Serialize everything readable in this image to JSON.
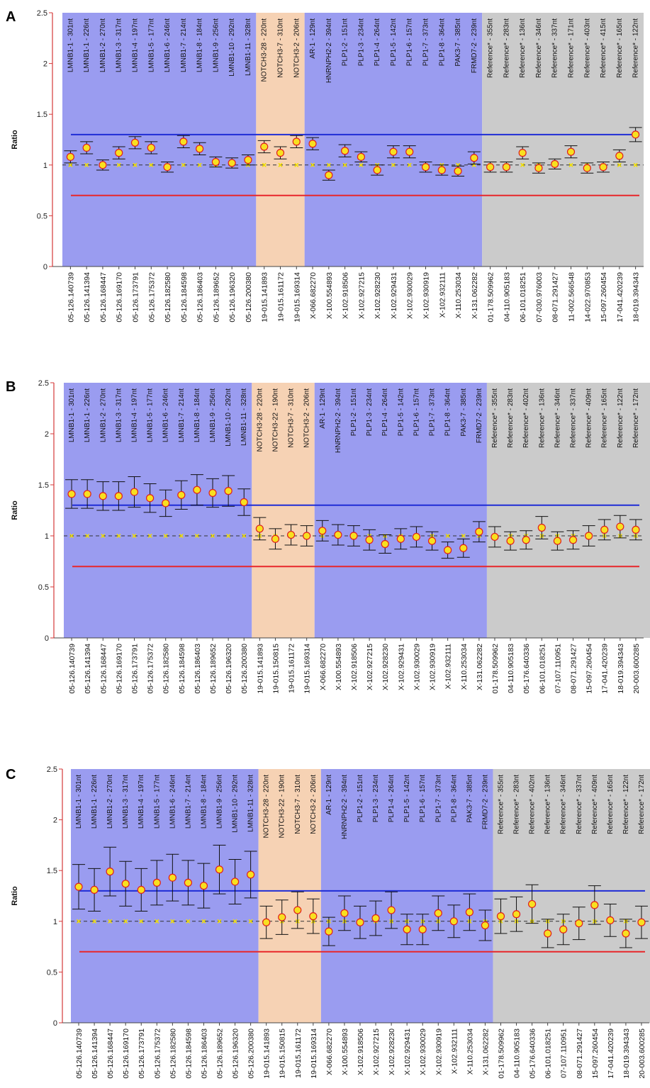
{
  "colors": {
    "region_blue": "#9a9cf0",
    "region_orange": "#f6d2b4",
    "region_gray": "#cbcbcb",
    "threshold_upper": "#1f2dd6",
    "threshold_lower": "#e8262a",
    "point_fill": "#f8e020",
    "point_stroke": "#e01e1e",
    "axis": "#d43a3a",
    "ref_line": "#333333",
    "ref_marker": "#f2e000"
  },
  "chart_data": [
    {
      "panel": "A",
      "type": "scatter",
      "ylabel": "Ratio",
      "ylim": [
        0,
        2.5
      ],
      "yticks": [
        "0",
        "0.5",
        "1",
        "1.5",
        "2",
        "2.5"
      ],
      "thresholds": {
        "upper": 1.3,
        "lower": 0.7,
        "reference": 1.0
      },
      "grid": false,
      "regions": [
        {
          "group": "blue",
          "start": 0,
          "end": 11
        },
        {
          "group": "orange",
          "start": 12,
          "end": 14
        },
        {
          "group": "blue",
          "start": 15,
          "end": 25
        },
        {
          "group": "gray",
          "start": 26,
          "end": 35
        }
      ],
      "probes": [
        "LMNB1-1 - 301nt",
        "LMNB1-1 - 226nt",
        "LMNB1-2 - 270nt",
        "LMNB1-3 - 317nt",
        "LMNB1-4 - 197nt",
        "LMNB1-5 - 177nt",
        "LMNB1-6 - 246nt",
        "LMNB1-7 - 214nt",
        "LMNB1-8 - 184nt",
        "LMNB1-9 - 256nt",
        "LMNB1-10 - 292nt",
        "LMNB1-11 - 328nt",
        "NOTCH3-28 - 220nt",
        "NOTCH3-7 - 310nt",
        "NOTCH3-2 - 206nt",
        "AR-1 - 129nt",
        "HNRNPH2-2 - 394nt",
        "PLP1-2 - 151nt",
        "PLP1-3 - 234nt",
        "PLP1-4 - 264nt",
        "PLP1-5 - 142nt",
        "PLP1-6 - 157nt",
        "PLP1-7 - 373nt",
        "PLP1-8 - 364nt",
        "PAK3-7 - 385nt",
        "FRMD7-2 - 239nt",
        "Reference* - 355nt",
        "Reference* - 283nt",
        "Reference* - 136nt",
        "Reference* - 346nt",
        "Reference* - 337nt",
        "Reference* - 171nt",
        "Reference* - 403nt",
        "Reference* - 415nt",
        "Reference* - 165nt",
        "Reference* - 122nt"
      ],
      "categories": [
        "05-126.140739",
        "05-126.141394",
        "05-126.168447",
        "05-126.169170",
        "05-126.173791",
        "05-126.175372",
        "05-126.182580",
        "05-126.184598",
        "05-126.186403",
        "05-126.189652",
        "05-126.196320",
        "05-126.200380",
        "19-015.141893",
        "19-015.161172",
        "19-015.169314",
        "X-066.682270",
        "X-100.554893",
        "X-102.918506",
        "X-102.927215",
        "X-102.928230",
        "X-102.929431",
        "X-102.930029",
        "X-102.930919",
        "X-102.932111",
        "X-110.253034",
        "X-131.062282",
        "01-178.509962",
        "04-110.905183",
        "06-101.018251",
        "07-030.976003",
        "08-071.291427",
        "11-002.566548",
        "14-022.970853",
        "15-097.260454",
        "17-041.420239",
        "18-019.394343"
      ],
      "values": [
        1.08,
        1.17,
        1.0,
        1.12,
        1.22,
        1.17,
        0.98,
        1.23,
        1.16,
        1.03,
        1.02,
        1.05,
        1.18,
        1.12,
        1.23,
        1.21,
        0.9,
        1.14,
        1.08,
        0.95,
        1.13,
        1.13,
        0.98,
        0.95,
        0.94,
        1.07,
        0.98,
        0.98,
        1.12,
        0.97,
        1.01,
        1.13,
        0.97,
        0.98,
        1.09,
        1.3
      ],
      "errors": [
        0.06,
        0.06,
        0.05,
        0.06,
        0.06,
        0.06,
        0.05,
        0.06,
        0.06,
        0.05,
        0.05,
        0.05,
        0.06,
        0.06,
        0.06,
        0.06,
        0.05,
        0.06,
        0.05,
        0.05,
        0.06,
        0.06,
        0.05,
        0.05,
        0.05,
        0.06,
        0.05,
        0.05,
        0.06,
        0.05,
        0.05,
        0.06,
        0.05,
        0.05,
        0.06,
        0.07
      ]
    },
    {
      "panel": "B",
      "type": "scatter",
      "ylabel": "Ratio",
      "ylim": [
        0,
        2.5
      ],
      "yticks": [
        "0",
        "0.5",
        "1",
        "1.5",
        "2",
        "2.5"
      ],
      "thresholds": {
        "upper": 1.3,
        "lower": 0.7,
        "reference": 1.0
      },
      "grid": false,
      "regions": [
        {
          "group": "blue",
          "start": 0,
          "end": 11
        },
        {
          "group": "orange",
          "start": 12,
          "end": 15
        },
        {
          "group": "blue",
          "start": 16,
          "end": 26
        },
        {
          "group": "gray",
          "start": 27,
          "end": 37
        }
      ],
      "probes": [
        "LMNB1-1 - 301nt",
        "LMNB1-1 - 226nt",
        "LMNB1-2 - 270nt",
        "LMNB1-3 - 317nt",
        "LMNB1-4 - 197nt",
        "LMNB1-5 - 177nt",
        "LMNB1-6 - 246nt",
        "LMNB1-7 - 214nt",
        "LMNB1-8 - 184nt",
        "LMNB1-9 - 256nt",
        "LMNB1-10 - 292nt",
        "LMNB1-11 - 328nt",
        "NOTCH3-28 - 220nt",
        "NOTCH3-22 - 190nt",
        "NOTCH3-7 - 310nt",
        "NOTCH3-2 - 206nt",
        "AR-1 - 129nt",
        "HNRNPH2-2 - 394nt",
        "PLP1-2 - 151nt",
        "PLP1-3 - 234nt",
        "PLP1-4 - 264nt",
        "PLP1-5 - 142nt",
        "PLP1-6 - 157nt",
        "PLP1-7 - 373nt",
        "PLP1-8 - 364nt",
        "PAK3-7 - 385nt",
        "FRMD7-2 - 239nt",
        "Reference* - 355nt",
        "Reference* - 283nt",
        "Reference* - 402nt",
        "Reference* - 136nt",
        "Reference* - 346nt",
        "Reference* - 337nt",
        "Reference* - 409nt",
        "Reference* - 165nt",
        "Reference* - 122nt",
        "Reference* - 172nt"
      ],
      "categories": [
        "05-126.140739",
        "05-126.141394",
        "05-126.168447",
        "05-126.169170",
        "05-126.173791",
        "05-126.175372",
        "05-126.182580",
        "05-126.184598",
        "05-126.186403",
        "05-126.189652",
        "05-126.196320",
        "05-126.200380",
        "19-015.141893",
        "19-015.150815",
        "19-015.161172",
        "19-015.169314",
        "X-066.682270",
        "X-100.554893",
        "X-102.918506",
        "X-102.927215",
        "X-102.928230",
        "X-102.929431",
        "X-102.930029",
        "X-102.930919",
        "X-102.932111",
        "X-110.253034",
        "X-131.062282",
        "01-178.509962",
        "04-110.905183",
        "05-176.640336",
        "06-101.018251",
        "07-107.110951",
        "08-071.291427",
        "15-097.260454",
        "17-041.420239",
        "18-019.394343",
        "20-003.600285"
      ],
      "values": [
        1.41,
        1.41,
        1.39,
        1.39,
        1.43,
        1.37,
        1.32,
        1.4,
        1.45,
        1.42,
        1.44,
        1.33,
        1.07,
        0.97,
        1.01,
        1.0,
        1.05,
        1.01,
        1.0,
        0.96,
        0.92,
        0.97,
        0.99,
        0.95,
        0.86,
        0.88,
        1.04,
        0.99,
        0.95,
        0.96,
        1.08,
        0.95,
        0.96,
        1.0,
        1.06,
        1.09,
        1.06
      ],
      "errors": [
        0.14,
        0.14,
        0.14,
        0.14,
        0.15,
        0.14,
        0.13,
        0.14,
        0.15,
        0.14,
        0.15,
        0.13,
        0.11,
        0.1,
        0.1,
        0.1,
        0.1,
        0.1,
        0.1,
        0.1,
        0.09,
        0.1,
        0.1,
        0.09,
        0.08,
        0.09,
        0.1,
        0.1,
        0.09,
        0.09,
        0.11,
        0.09,
        0.09,
        0.1,
        0.1,
        0.11,
        0.1
      ]
    },
    {
      "panel": "C",
      "type": "scatter",
      "ylabel": "Ratio",
      "ylim": [
        0,
        2.5
      ],
      "yticks": [
        "0",
        "0.5",
        "1",
        "1.5",
        "2",
        "2.5"
      ],
      "thresholds": {
        "upper": 1.3,
        "lower": 0.7,
        "reference": 1.0
      },
      "grid": false,
      "regions": [
        {
          "group": "blue",
          "start": 0,
          "end": 11
        },
        {
          "group": "orange",
          "start": 12,
          "end": 15
        },
        {
          "group": "blue",
          "start": 16,
          "end": 26
        },
        {
          "group": "gray",
          "start": 27,
          "end": 37
        }
      ],
      "probes": [
        "LMNB1-1 - 301nt",
        "LMNB1-1 - 226nt",
        "LMNB1-2 - 270nt",
        "LMNB1-3 - 317nt",
        "LMNB1-4 - 197nt",
        "LMNB1-5 - 177nt",
        "LMNB1-6 - 246nt",
        "LMNB1-7 - 214nt",
        "LMNB1-8 - 184nt",
        "LMNB1-9 - 256nt",
        "LMNB1-10 - 292nt",
        "LMNB1-11 - 328nt",
        "NOTCH3-28 - 220nt",
        "NOTCH3-22 - 190nt",
        "NOTCH3-7 - 310nt",
        "NOTCH3-2 - 206nt",
        "AR-1 - 129nt",
        "HNRNPH2-2 - 394nt",
        "PLP1-2 - 151nt",
        "PLP1-3 - 234nt",
        "PLP1-4 - 264nt",
        "PLP1-5 - 142nt",
        "PLP1-6 - 157nt",
        "PLP1-7 - 373nt",
        "PLP1-8 - 364nt",
        "PAK3-7 - 385nt",
        "FRMD7-2 - 239nt",
        "Reference* - 355nt",
        "Reference* - 283nt",
        "Reference* - 402nt",
        "Reference* - 136nt",
        "Reference* - 346nt",
        "Reference* - 337nt",
        "Reference* - 409nt",
        "Reference* - 165nt",
        "Reference* - 122nt",
        "Reference* - 172nt"
      ],
      "categories": [
        "05-126.140739",
        "05-126.141394",
        "05-126.168447",
        "05-126.169170",
        "05-126.173791",
        "05-126.175372",
        "05-126.182580",
        "05-126.184598",
        "05-126.186403",
        "05-126.189652",
        "05-126.196320",
        "05-126.200380",
        "19-015.141893",
        "19-015.150815",
        "19-015.161172",
        "19-015.169314",
        "X-066.682270",
        "X-100.554893",
        "X-102.918506",
        "X-102.927215",
        "X-102.928230",
        "X-102.929431",
        "X-102.930029",
        "X-102.930919",
        "X-102.932111",
        "X-110.253034",
        "X-131.062282",
        "01-178.509962",
        "04-110.905183",
        "05-176.640336",
        "06-101.018251",
        "07-107.110951",
        "08-071.291427",
        "15-097.260454",
        "17-041.420239",
        "18-019.394343",
        "20-003.600285"
      ],
      "values": [
        1.34,
        1.31,
        1.49,
        1.37,
        1.31,
        1.38,
        1.43,
        1.38,
        1.35,
        1.51,
        1.39,
        1.46,
        0.99,
        1.04,
        1.11,
        1.05,
        0.9,
        1.08,
        0.99,
        1.03,
        1.11,
        0.92,
        0.92,
        1.08,
        1.0,
        1.09,
        0.96,
        1.05,
        1.07,
        1.17,
        0.88,
        0.92,
        0.98,
        1.16,
        1.01,
        0.88,
        0.99
      ],
      "errors": [
        0.22,
        0.21,
        0.24,
        0.22,
        0.21,
        0.22,
        0.23,
        0.22,
        0.22,
        0.24,
        0.22,
        0.23,
        0.16,
        0.17,
        0.18,
        0.17,
        0.14,
        0.17,
        0.16,
        0.17,
        0.18,
        0.15,
        0.15,
        0.17,
        0.16,
        0.18,
        0.15,
        0.17,
        0.17,
        0.19,
        0.14,
        0.15,
        0.16,
        0.19,
        0.16,
        0.14,
        0.16
      ]
    }
  ]
}
